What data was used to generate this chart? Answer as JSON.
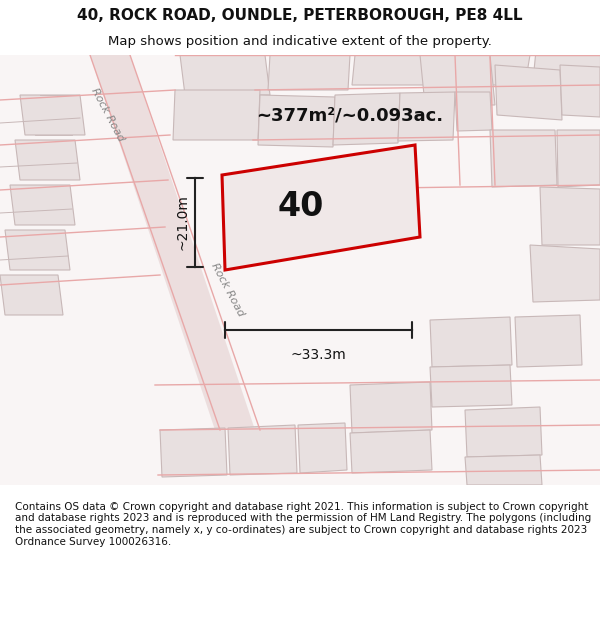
{
  "title": "40, ROCK ROAD, OUNDLE, PETERBOROUGH, PE8 4LL",
  "subtitle": "Map shows position and indicative extent of the property.",
  "footer": "Contains OS data © Crown copyright and database right 2021. This information is subject to Crown copyright and database rights 2023 and is reproduced with the permission of HM Land Registry. The polygons (including the associated geometry, namely x, y co-ordinates) are subject to Crown copyright and database rights 2023 Ordnance Survey 100026316.",
  "area_label": "~377m²/~0.093ac.",
  "plot_number": "40",
  "dim_width": "~33.3m",
  "dim_height": "~21.0m",
  "road_label1": "Rock Road",
  "road_label2": "Rock Road",
  "bg_color": "#f5f0f0",
  "map_bg": "#f9f5f5",
  "building_fill": "#e8e0e0",
  "building_edge": "#c8b8b8",
  "road_line_color": "#e8a8a8",
  "plot_fill": "#f0e8e8",
  "plot_edge": "#cc0000",
  "text_color": "#111111",
  "dim_line_color": "#222222",
  "title_fontsize": 11,
  "subtitle_fontsize": 9.5,
  "footer_fontsize": 7.5
}
